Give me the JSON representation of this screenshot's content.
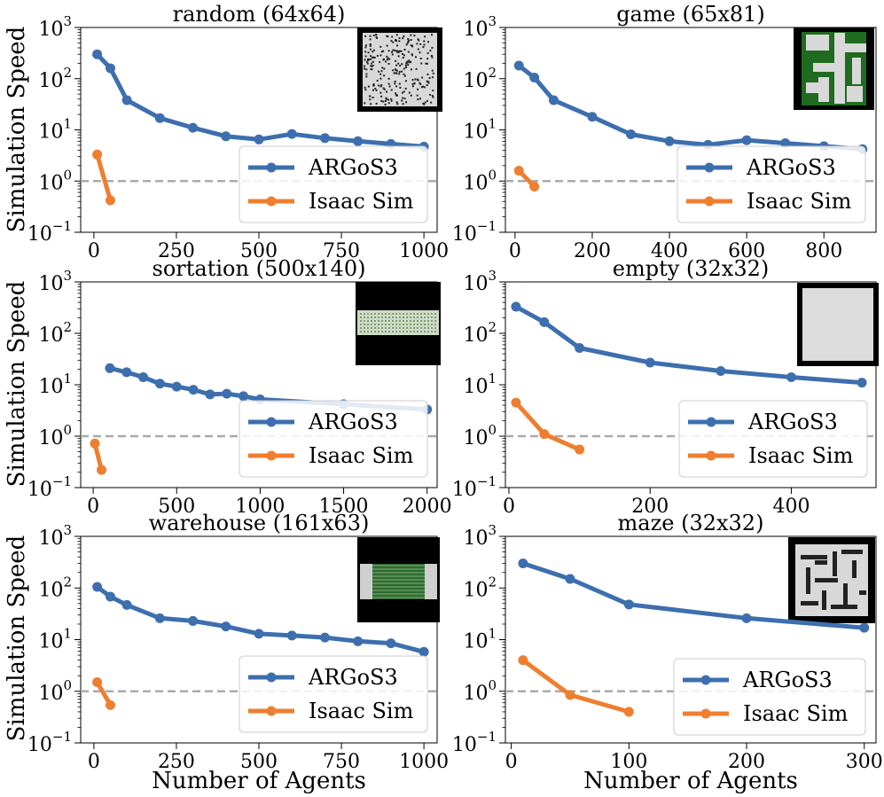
{
  "figure": {
    "ylabel": "Simulation Speed",
    "xlabel": "Number of Agents"
  },
  "colors": {
    "argos": "#3d6fae",
    "isaac": "#ee7e30",
    "reference": "#aaaaaa"
  },
  "chart_data": [
    {
      "type": "line",
      "title": "random (64x64)",
      "yscale": "log",
      "ylim": [
        0.1,
        1000
      ],
      "xlim": [
        -40,
        1040
      ],
      "xticks": [
        0,
        250,
        500,
        750,
        1000
      ],
      "yticks": [
        {
          "base": "10",
          "exp": "3"
        },
        {
          "base": "10",
          "exp": "2"
        },
        {
          "base": "10",
          "exp": "1"
        },
        {
          "base": "10",
          "exp": "0"
        },
        {
          "base": "10",
          "exp": "−1"
        }
      ],
      "reference_line": 1,
      "legend": "lower right",
      "inset": "random",
      "series": [
        {
          "name": "ARGoS3",
          "x": [
            10,
            50,
            100,
            200,
            300,
            400,
            500,
            600,
            700,
            800,
            900,
            1000
          ],
          "y": [
            300,
            160,
            38,
            17,
            11,
            7.5,
            6.5,
            8.3,
            6.9,
            6,
            5.3,
            4.7
          ]
        },
        {
          "name": "Isaac Sim",
          "x": [
            10,
            50
          ],
          "y": [
            3.3,
            0.42
          ]
        }
      ]
    },
    {
      "type": "line",
      "title": "game (65x81)",
      "yscale": "log",
      "ylim": [
        0.1,
        1000
      ],
      "xlim": [
        -25,
        935
      ],
      "xticks": [
        0,
        200,
        400,
        600,
        800
      ],
      "yticks": [
        {
          "base": "10",
          "exp": "3"
        },
        {
          "base": "10",
          "exp": "2"
        },
        {
          "base": "10",
          "exp": "1"
        },
        {
          "base": "10",
          "exp": "0"
        },
        {
          "base": "10",
          "exp": "−1"
        }
      ],
      "reference_line": 1,
      "legend": "lower right",
      "inset": "game",
      "series": [
        {
          "name": "ARGoS3",
          "x": [
            10,
            50,
            100,
            200,
            300,
            400,
            500,
            600,
            700,
            800,
            900
          ],
          "y": [
            180,
            105,
            38,
            18,
            8.2,
            6,
            5.1,
            6.3,
            5.5,
            4.8,
            4.2
          ]
        },
        {
          "name": "Isaac Sim",
          "x": [
            10,
            50
          ],
          "y": [
            1.6,
            0.78
          ]
        }
      ]
    },
    {
      "type": "line",
      "title": "sortation (500x140)",
      "yscale": "log",
      "ylim": [
        0.1,
        1000
      ],
      "xlim": [
        -75,
        2060
      ],
      "xticks": [
        0,
        500,
        1000,
        1500,
        2000
      ],
      "yticks": [
        {
          "base": "10",
          "exp": "3"
        },
        {
          "base": "10",
          "exp": "2"
        },
        {
          "base": "10",
          "exp": "1"
        },
        {
          "base": "10",
          "exp": "0"
        },
        {
          "base": "10",
          "exp": "−1"
        }
      ],
      "reference_line": 1,
      "legend": "lower right",
      "inset": "sortation",
      "series": [
        {
          "name": "ARGoS3",
          "x": [
            100,
            200,
            300,
            400,
            500,
            600,
            700,
            800,
            900,
            1000,
            1500,
            2000
          ],
          "y": [
            21,
            17.5,
            14,
            10.5,
            9.2,
            8,
            6.5,
            6.7,
            6,
            5.2,
            4.2,
            3.3
          ]
        },
        {
          "name": "Isaac Sim",
          "x": [
            10,
            50
          ],
          "y": [
            0.72,
            0.22
          ]
        }
      ]
    },
    {
      "type": "line",
      "title": "empty (32x32)",
      "yscale": "log",
      "ylim": [
        0.1,
        1000
      ],
      "xlim": [
        -5,
        520
      ],
      "xticks": [
        0,
        200,
        400
      ],
      "yticks": [
        {
          "base": "10",
          "exp": "3"
        },
        {
          "base": "10",
          "exp": "2"
        },
        {
          "base": "10",
          "exp": "1"
        },
        {
          "base": "10",
          "exp": "0"
        },
        {
          "base": "10",
          "exp": "−1"
        }
      ],
      "reference_line": 1,
      "legend": "lower right",
      "inset": "empty",
      "series": [
        {
          "name": "ARGoS3",
          "x": [
            10,
            50,
            100,
            200,
            300,
            400,
            500
          ],
          "y": [
            330,
            165,
            52,
            27,
            18.5,
            14,
            11
          ]
        },
        {
          "name": "Isaac Sim",
          "x": [
            10,
            50,
            100
          ],
          "y": [
            4.5,
            1.1,
            0.55
          ]
        }
      ]
    },
    {
      "type": "line",
      "title": "warehouse (161x63)",
      "yscale": "log",
      "ylim": [
        0.1,
        1000
      ],
      "xlim": [
        -40,
        1040
      ],
      "xticks": [
        0,
        250,
        500,
        750,
        1000
      ],
      "yticks": [
        {
          "base": "10",
          "exp": "3"
        },
        {
          "base": "10",
          "exp": "2"
        },
        {
          "base": "10",
          "exp": "1"
        },
        {
          "base": "10",
          "exp": "0"
        },
        {
          "base": "10",
          "exp": "−1"
        }
      ],
      "reference_line": 1,
      "legend": "lower right",
      "inset": "warehouse",
      "series": [
        {
          "name": "ARGoS3",
          "x": [
            10,
            50,
            100,
            200,
            300,
            400,
            500,
            600,
            700,
            800,
            900,
            1000
          ],
          "y": [
            105,
            68,
            47,
            26,
            23,
            18,
            13,
            12,
            11,
            9.3,
            8.5,
            5.8
          ]
        },
        {
          "name": "Isaac Sim",
          "x": [
            10,
            50
          ],
          "y": [
            1.5,
            0.54
          ]
        }
      ]
    },
    {
      "type": "line",
      "title": "maze (32x32)",
      "yscale": "log",
      "ylim": [
        0.1,
        1000
      ],
      "xlim": [
        -5,
        310
      ],
      "xticks": [
        0,
        100,
        200,
        300
      ],
      "yticks": [
        {
          "base": "10",
          "exp": "3"
        },
        {
          "base": "10",
          "exp": "2"
        },
        {
          "base": "10",
          "exp": "1"
        },
        {
          "base": "10",
          "exp": "0"
        },
        {
          "base": "10",
          "exp": "−1"
        }
      ],
      "reference_line": 1,
      "legend": "lower right",
      "inset": "maze",
      "series": [
        {
          "name": "ARGoS3",
          "x": [
            10,
            50,
            100,
            200,
            300
          ],
          "y": [
            300,
            150,
            48,
            26,
            17
          ]
        },
        {
          "name": "Isaac Sim",
          "x": [
            10,
            50,
            100
          ],
          "y": [
            4,
            0.85,
            0.4
          ]
        }
      ]
    }
  ]
}
